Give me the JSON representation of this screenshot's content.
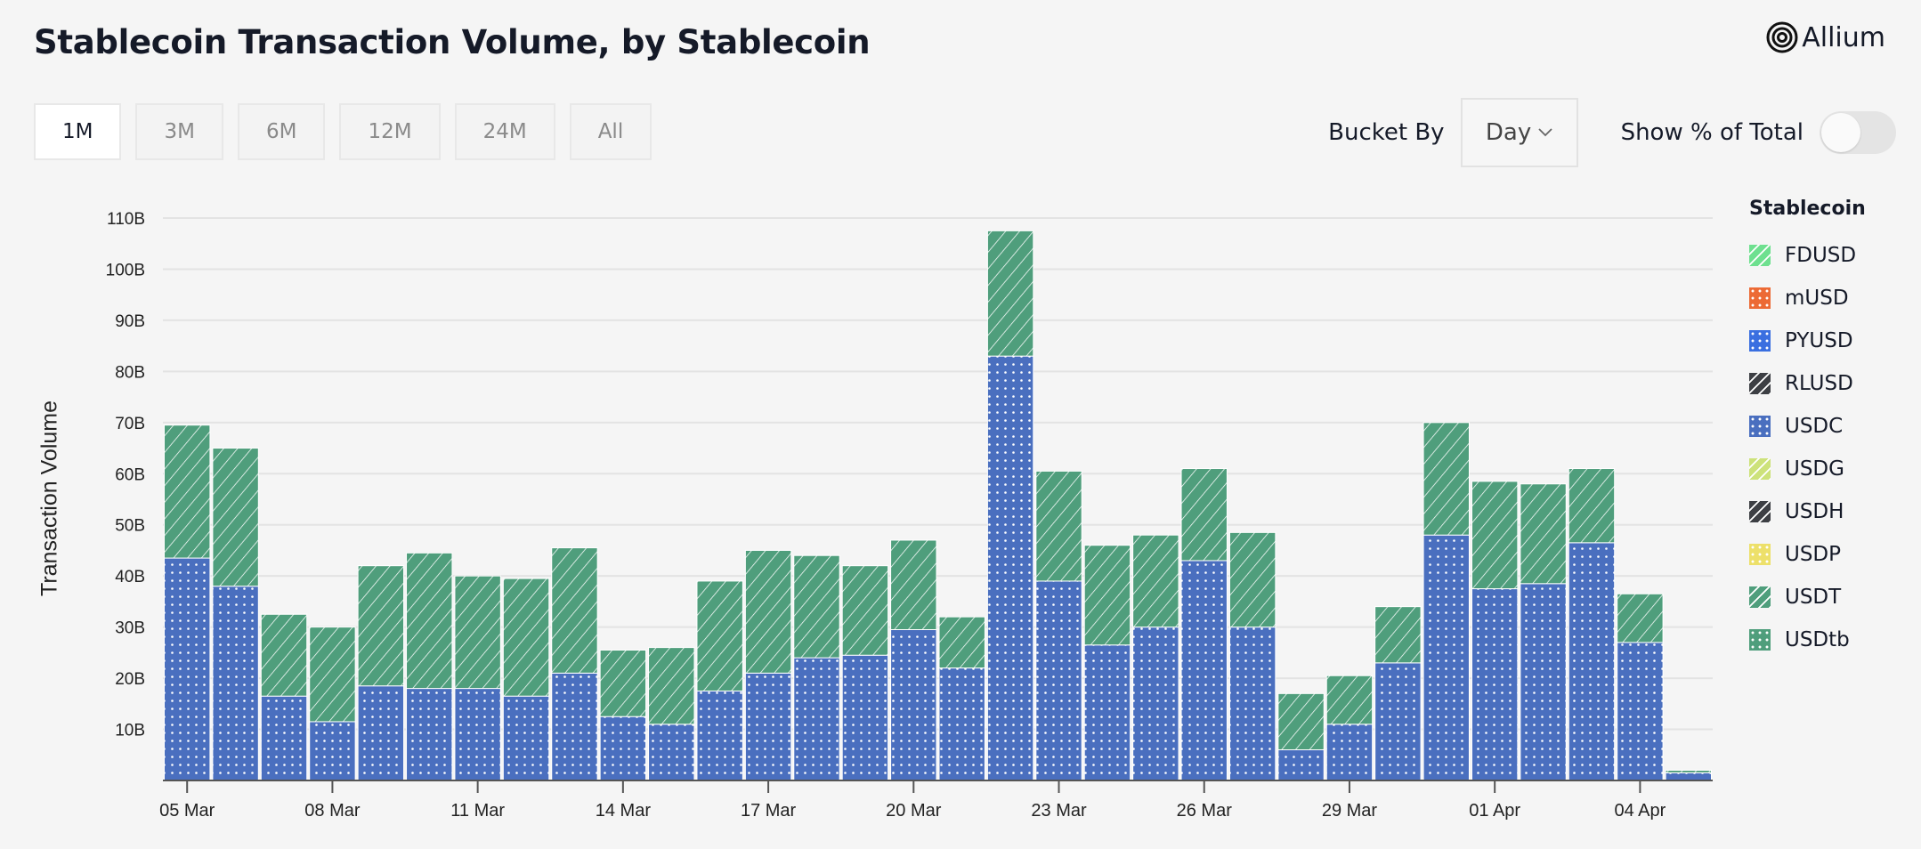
{
  "header": {
    "title": "Stablecoin Transaction Volume, by Stablecoin",
    "logo": "Allium"
  },
  "ranges": [
    {
      "label": "1M",
      "active": true
    },
    {
      "label": "3M"
    },
    {
      "label": "6M"
    },
    {
      "label": "12M"
    },
    {
      "label": "24M"
    },
    {
      "label": "All"
    }
  ],
  "controls": {
    "bucket_label": "Bucket By",
    "bucket_value": "Day",
    "percent_label": "Show % of Total",
    "percent_on": false
  },
  "legend": {
    "title": "Stablecoin",
    "items": [
      {
        "name": "FDUSD",
        "color": "#6ee08f",
        "pattern": "hatch"
      },
      {
        "name": "mUSD",
        "color": "#ec6a35",
        "pattern": "dots"
      },
      {
        "name": "PYUSD",
        "color": "#3a6fe0",
        "pattern": "dots"
      },
      {
        "name": "RLUSD",
        "color": "#3d3f44",
        "pattern": "hatch"
      },
      {
        "name": "USDC",
        "color": "#4a6fbf",
        "pattern": "dots"
      },
      {
        "name": "USDG",
        "color": "#cde27a",
        "pattern": "hatch"
      },
      {
        "name": "USDH",
        "color": "#3d3f44",
        "pattern": "hatch"
      },
      {
        "name": "USDP",
        "color": "#ede06a",
        "pattern": "dots"
      },
      {
        "name": "USDT",
        "color": "#4f9e7c",
        "pattern": "hatch"
      },
      {
        "name": "USDtb",
        "color": "#4f9e7c",
        "pattern": "dots"
      }
    ]
  },
  "chart_data": {
    "type": "bar",
    "stacked": true,
    "ylabel": "Transaction Volume",
    "xlabel": "",
    "ylim": [
      0,
      110
    ],
    "y_unit": "B",
    "yticks": [
      "10B",
      "20B",
      "30B",
      "40B",
      "50B",
      "60B",
      "70B",
      "80B",
      "90B",
      "100B",
      "110B"
    ],
    "grid": true,
    "legend_position": "right",
    "categories": [
      "05 Mar",
      "06 Mar",
      "07 Mar",
      "08 Mar",
      "09 Mar",
      "10 Mar",
      "11 Mar",
      "12 Mar",
      "13 Mar",
      "14 Mar",
      "15 Mar",
      "16 Mar",
      "17 Mar",
      "18 Mar",
      "19 Mar",
      "20 Mar",
      "21 Mar",
      "22 Mar",
      "23 Mar",
      "24 Mar",
      "25 Mar",
      "26 Mar",
      "27 Mar",
      "28 Mar",
      "29 Mar",
      "30 Mar",
      "31 Mar",
      "01 Apr",
      "02 Apr",
      "03 Apr",
      "04 Apr",
      "05 Apr"
    ],
    "xtick_labels": [
      "05 Mar",
      "08 Mar",
      "11 Mar",
      "14 Mar",
      "17 Mar",
      "20 Mar",
      "23 Mar",
      "26 Mar",
      "29 Mar",
      "01 Apr",
      "04 Apr"
    ],
    "series": [
      {
        "name": "USDC",
        "values": [
          43.5,
          38,
          16.5,
          11.5,
          18.5,
          18,
          18,
          16.5,
          21,
          12.5,
          11,
          17.5,
          21,
          24,
          24.5,
          29.5,
          22,
          83,
          39,
          26.5,
          30,
          43,
          30,
          6,
          11,
          23,
          48,
          37.5,
          38.5,
          46.5,
          27,
          1.5
        ]
      },
      {
        "name": "USDT",
        "values": [
          26,
          27,
          16,
          18.5,
          23.5,
          26.5,
          22,
          23,
          24.5,
          13,
          15,
          21.5,
          24,
          20,
          17.5,
          17.5,
          10,
          24.5,
          21.5,
          19.5,
          18,
          18,
          18.5,
          11,
          9.5,
          11,
          22,
          21,
          19.5,
          14.5,
          9.5,
          0.5
        ]
      }
    ]
  }
}
